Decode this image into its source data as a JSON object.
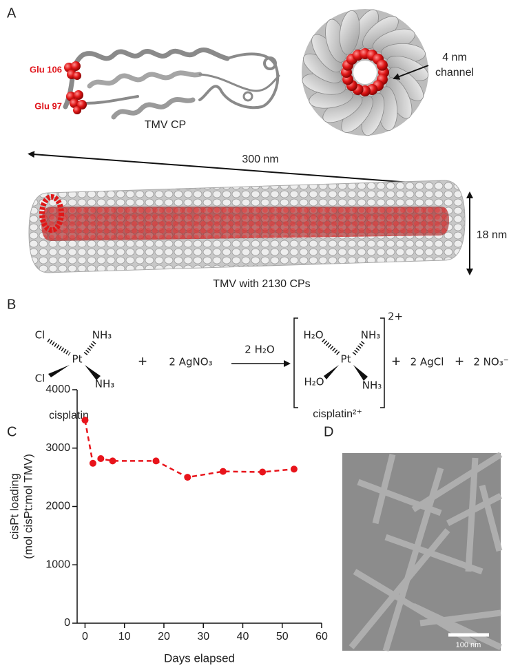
{
  "panel_a": {
    "label": "A",
    "glu106": "Glu 106",
    "glu97": "Glu 97",
    "protein": "TMV CP",
    "channel": [
      "4 nm",
      "channel"
    ],
    "length": "300 nm",
    "diameter": "18 nm",
    "rod": "TMV with 2130 CPs"
  },
  "panel_b": {
    "label": "B",
    "reactant": {
      "ligands": [
        "Cl",
        "NH₃",
        "Cl",
        "NH₃"
      ],
      "metal": "Pt",
      "name": "cisplatin"
    },
    "plus": "+",
    "reagent": "2 AgNO₃",
    "condition": "2 H₂O",
    "product": {
      "ligands": [
        "H₂O",
        "NH₃",
        "H₂O",
        "NH₃"
      ],
      "metal": "Pt",
      "charge": "2+",
      "name": "cisplatin²⁺"
    },
    "byproducts": [
      "2 AgCl",
      "2 NO₃⁻"
    ]
  },
  "panel_c": {
    "label": "C"
  },
  "panel_d": {
    "label": "D",
    "scale_bar": "100 nm"
  },
  "chart_data": {
    "type": "line",
    "xlabel": "Days elapsed",
    "ylabel": [
      "cisPt loading",
      "(mol cisPt:mol TMV)"
    ],
    "x": [
      0,
      2,
      4,
      7,
      18,
      26,
      35,
      45,
      53
    ],
    "values": [
      3480,
      2740,
      2820,
      2780,
      2780,
      2500,
      2600,
      2590,
      2640
    ],
    "color": "#e8141b",
    "line_style": "dashed",
    "xlim": [
      -2,
      60
    ],
    "ylim": [
      0,
      4000
    ],
    "xticks": [
      0,
      10,
      20,
      30,
      40,
      50,
      60
    ],
    "yticks": [
      0,
      1000,
      2000,
      3000,
      4000
    ]
  }
}
